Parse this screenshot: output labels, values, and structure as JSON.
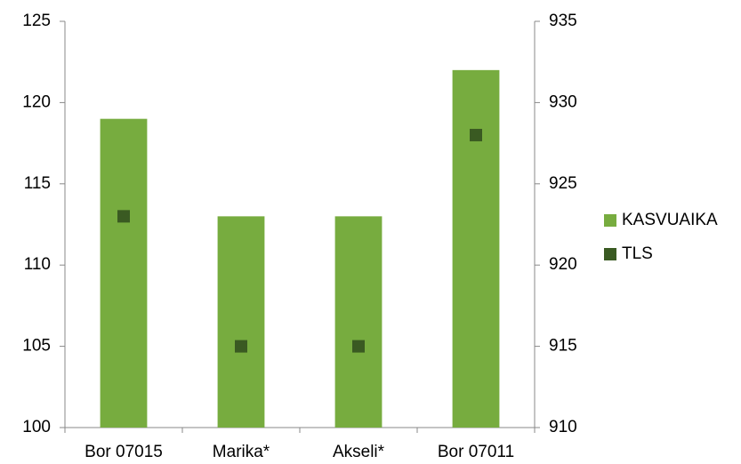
{
  "chart_data": {
    "type": "bar",
    "categories": [
      "Bor 07015",
      "Marika*",
      "Akseli*",
      "Bor 07011"
    ],
    "series": [
      {
        "name": "KASVUAIKA",
        "color": "#77ac3f",
        "values": [
          119,
          113,
          113,
          122
        ]
      },
      {
        "name": "TLS",
        "color": "#3a5a22",
        "values": [
          923,
          915,
          915,
          928
        ],
        "axis": "y2",
        "marker": "square"
      }
    ],
    "ylim": [
      100,
      125
    ],
    "yticks": [
      100,
      105,
      110,
      115,
      120,
      125
    ],
    "y2lim": [
      910,
      935
    ],
    "y2ticks": [
      910,
      915,
      920,
      925,
      930,
      935
    ],
    "grid": false,
    "legend": "right"
  }
}
